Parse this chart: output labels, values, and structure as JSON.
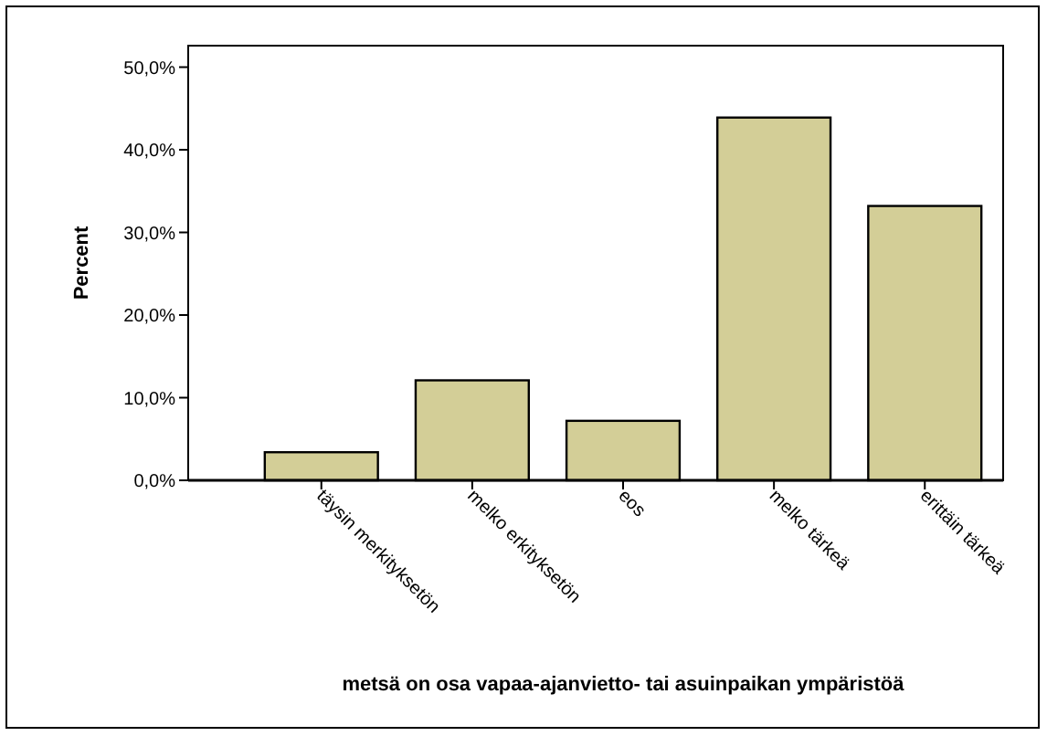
{
  "chart_data": {
    "type": "bar",
    "xlabel": "metsä on osa vapaa-ajanvietto- tai asuinpaikan ympäristöä",
    "ylabel": "Percent",
    "categories": [
      "täysin merkityksetön",
      "melko erkityksetön",
      "eos",
      "melko tärkeä",
      "erittäin tärkeä"
    ],
    "values": [
      3.4,
      12.1,
      7.2,
      43.9,
      33.2
    ],
    "color": "#d3ce97",
    "ylim": [
      0,
      52.6
    ],
    "yticks": [
      {
        "value": 0,
        "label": "0,0%"
      },
      {
        "value": 10,
        "label": "10,0%"
      },
      {
        "value": 20,
        "label": "20,0%"
      },
      {
        "value": 30,
        "label": "30,0%"
      },
      {
        "value": 40,
        "label": "40,0%"
      },
      {
        "value": 50,
        "label": "50,0%"
      }
    ],
    "grid": false
  }
}
